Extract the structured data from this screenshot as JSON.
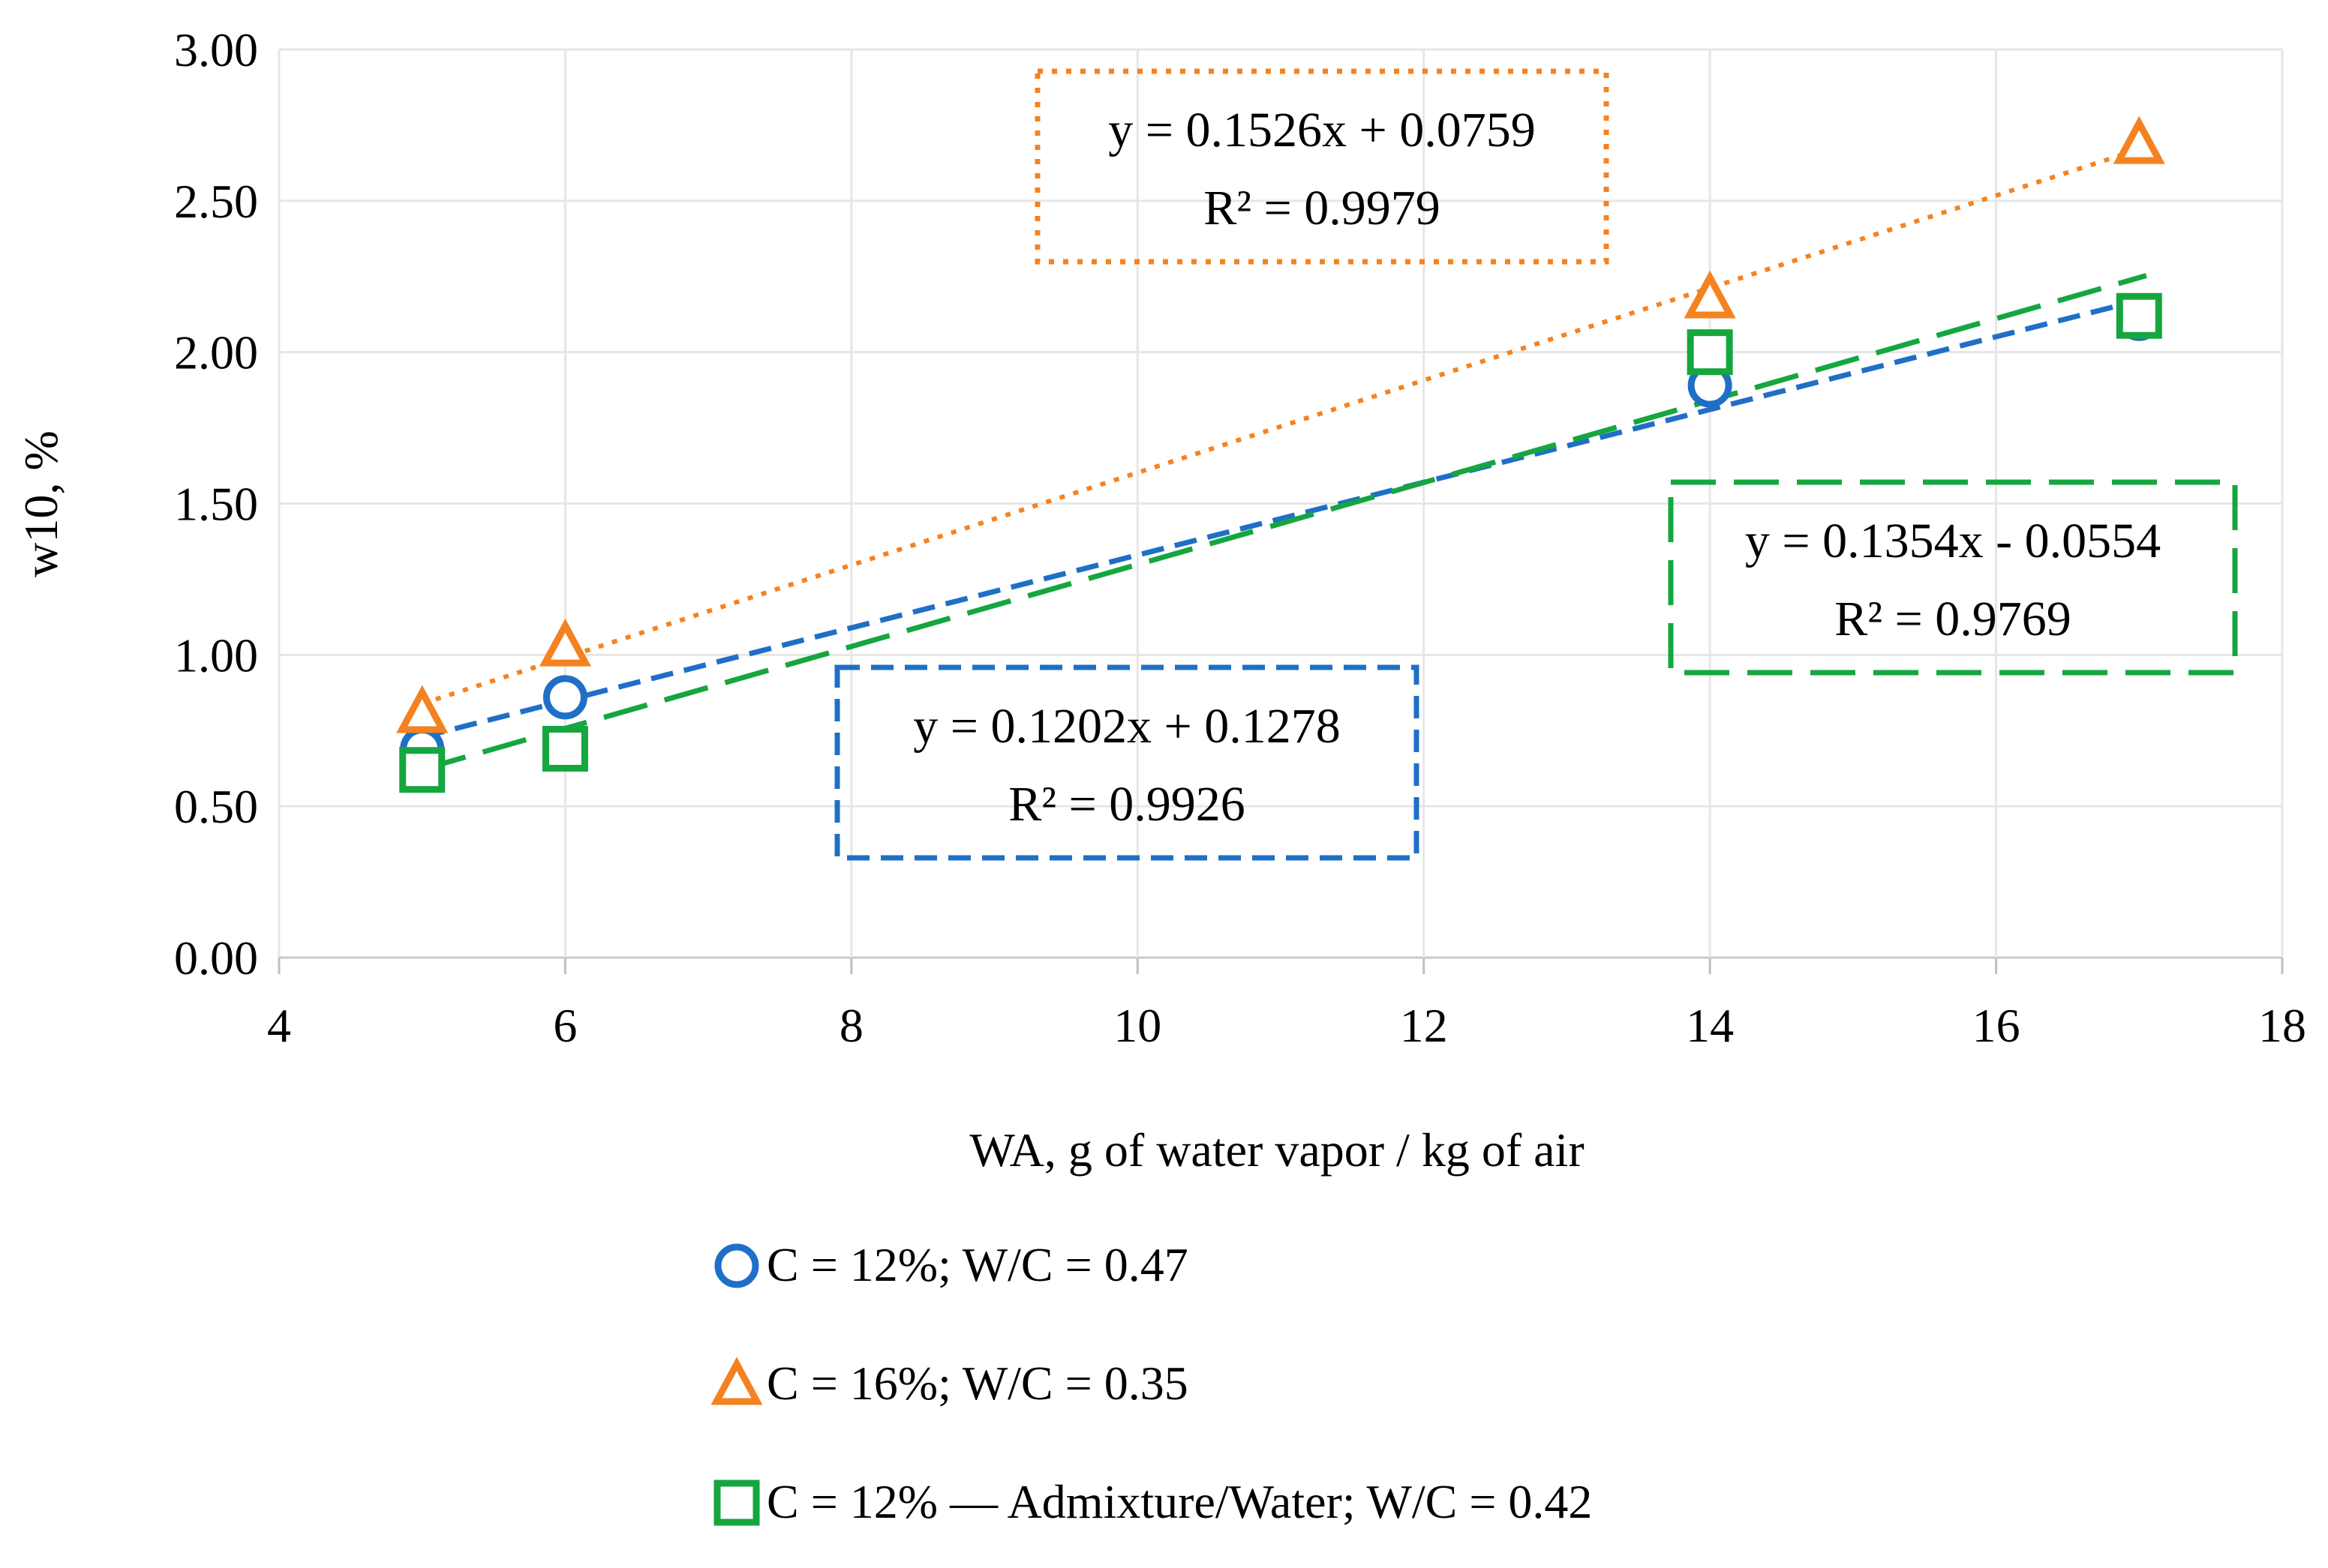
{
  "chart_data": {
    "type": "scatter",
    "xlabel": "WA, g of water vapor / kg of air",
    "ylabel": "w10, %",
    "xlim": [
      4,
      18
    ],
    "ylim": [
      0,
      3
    ],
    "x_ticks": [
      "4",
      "6",
      "8",
      "10",
      "12",
      "14",
      "16",
      "18"
    ],
    "y_ticks": [
      "0.00",
      "0.50",
      "1.00",
      "1.50",
      "2.00",
      "2.50",
      "3.00"
    ],
    "grid": true,
    "legend_position": "bottom",
    "series": [
      {
        "name": "C = 12%; W/C = 0.47",
        "marker": "circle",
        "color": "#1f6fc6",
        "trendline_style": "dashed",
        "x": [
          5,
          6,
          14,
          17
        ],
        "y": [
          0.69,
          0.86,
          1.89,
          2.11
        ],
        "trendline": {
          "slope": 0.1202,
          "intercept": 0.1278,
          "equation": "y = 0.1202x + 0.1278",
          "r2": "R² = 0.9926"
        }
      },
      {
        "name": "C = 16%; W/C = 0.35",
        "marker": "triangle",
        "color": "#f58220",
        "trendline_style": "dotted",
        "x": [
          5,
          6,
          14,
          17
        ],
        "y": [
          0.81,
          1.03,
          2.18,
          2.69
        ],
        "trendline": {
          "slope": 0.1526,
          "intercept": 0.0759,
          "equation": "y = 0.1526x + 0.0759",
          "r2": "R² = 0.9979"
        }
      },
      {
        "name": "C = 12% — Admixture/Water; W/C = 0.42",
        "marker": "square",
        "color": "#16a63f",
        "trendline_style": "long-dashed",
        "x": [
          5,
          6,
          14,
          17
        ],
        "y": [
          0.62,
          0.69,
          2.0,
          2.12
        ],
        "trendline": {
          "slope": 0.1354,
          "intercept": -0.0554,
          "equation": "y = 0.1354x - 0.0554",
          "r2": "R² = 0.9769"
        }
      }
    ]
  }
}
